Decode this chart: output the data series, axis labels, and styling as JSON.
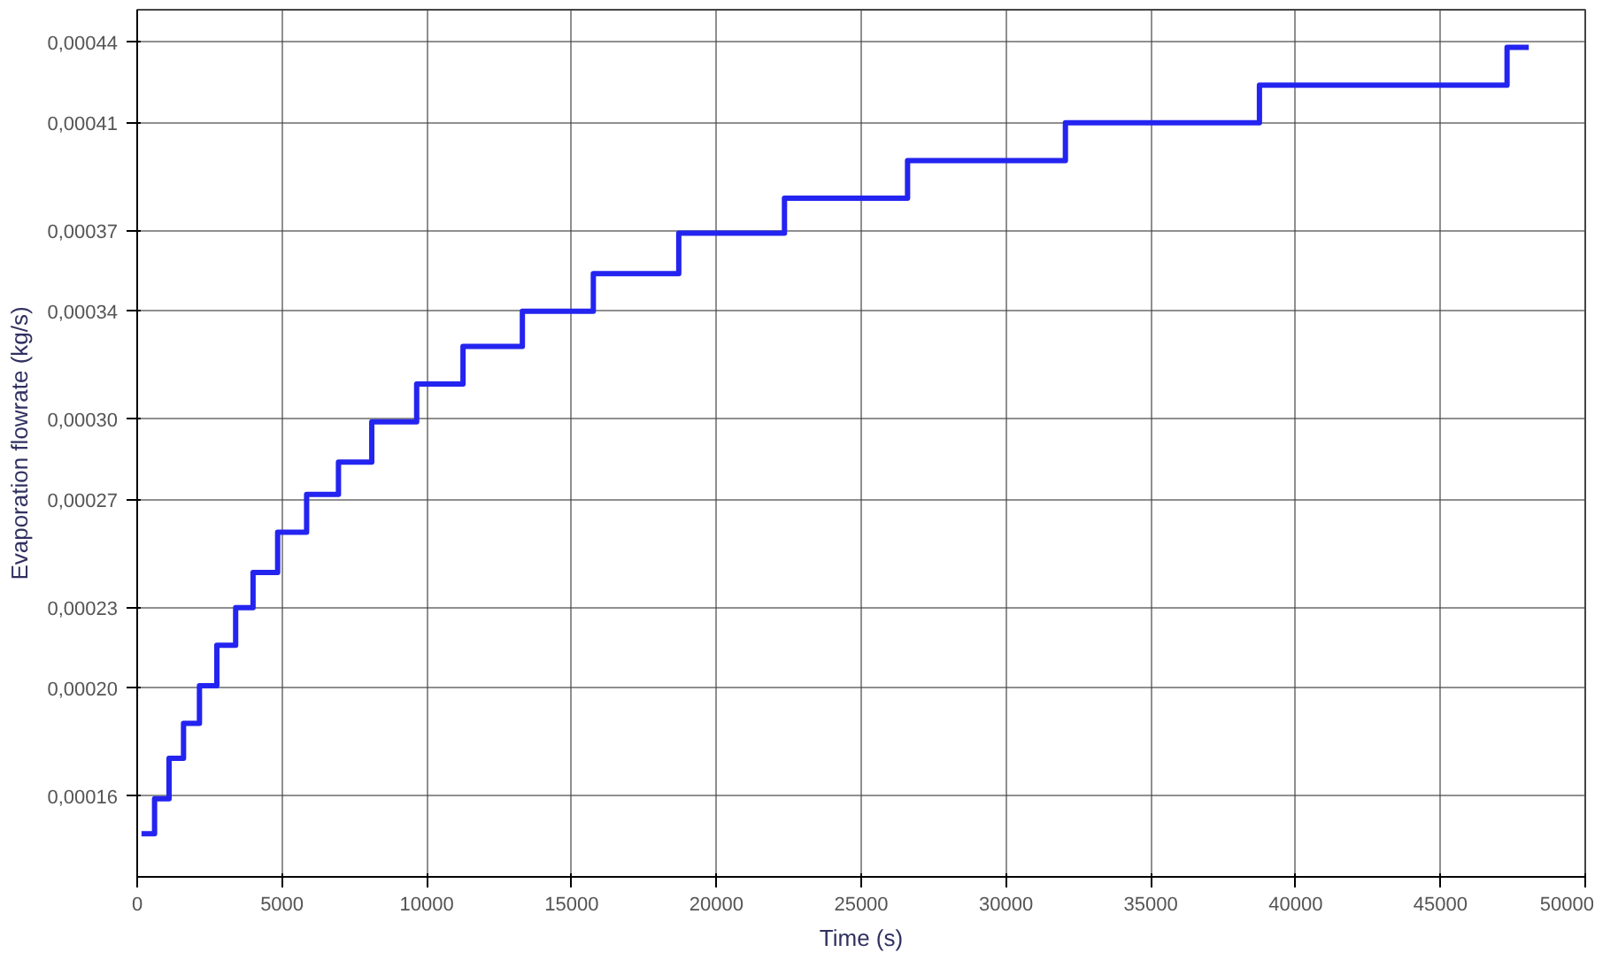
{
  "chart_data": {
    "type": "step",
    "xlabel": "Time (s)",
    "ylabel": "Evaporation flowrate (kg/s)",
    "x": [
      150,
      600,
      1100,
      1600,
      2150,
      2750,
      3400,
      4000,
      4850,
      5850,
      6950,
      8100,
      9650,
      11250,
      13300,
      15750,
      18700,
      22350,
      26600,
      32050,
      38750,
      47300,
      48050
    ],
    "series": [
      {
        "color": "#2424f0",
        "values": [
          0.000146,
          0.000159,
          0.000174,
          0.000187,
          0.000201,
          0.000216,
          0.00023,
          0.000243,
          0.000258,
          0.000272,
          0.000284,
          0.000299,
          0.000313,
          0.000327,
          0.00034,
          0.000354,
          0.000369,
          0.000382,
          0.000396,
          0.00041,
          0.000424,
          0.000438,
          0.000438
        ]
      }
    ],
    "xlim": [
      0,
      50000
    ],
    "xticks": [
      0,
      5000,
      10000,
      15000,
      20000,
      25000,
      30000,
      35000,
      40000,
      45000,
      50000
    ],
    "ylim": [
      0.00013,
      0.000452
    ],
    "yticks": [
      {
        "value": 0.00016,
        "label": "0,00016"
      },
      {
        "value": 0.0002,
        "label": "0,00020"
      },
      {
        "value": 0.00023,
        "label": "0,00023"
      },
      {
        "value": 0.00027,
        "label": "0,00027"
      },
      {
        "value": 0.0003,
        "label": "0,00030"
      },
      {
        "value": 0.00034,
        "label": "0,00034"
      },
      {
        "value": 0.00037,
        "label": "0,00037"
      },
      {
        "value": 0.00041,
        "label": "0,00041"
      },
      {
        "value": 0.00044,
        "label": "0,00044"
      }
    ],
    "grid": true
  }
}
